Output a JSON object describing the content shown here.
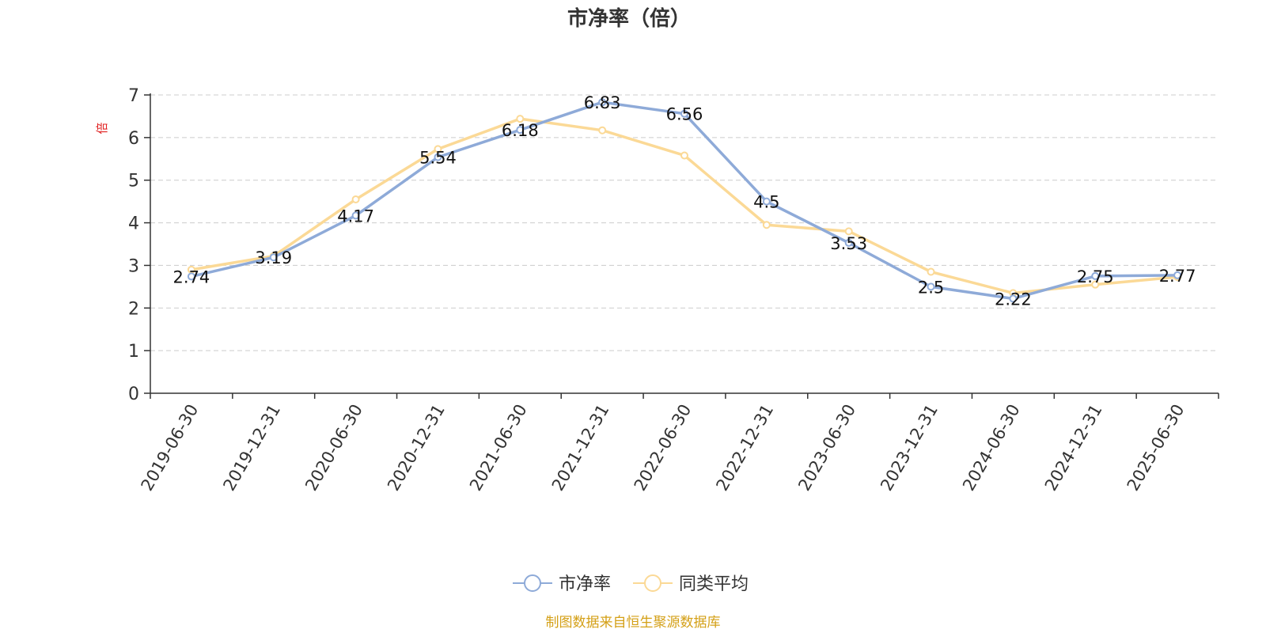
{
  "chart_data": {
    "type": "line",
    "title": "市净率（倍）",
    "ylabel": "倍",
    "xlabel": "",
    "categories": [
      "2019-06-30",
      "2019-12-31",
      "2020-06-30",
      "2020-12-31",
      "2021-06-30",
      "2021-12-31",
      "2022-06-30",
      "2022-12-31",
      "2023-06-30",
      "2023-12-31",
      "2024-06-30",
      "2024-12-31",
      "2025-06-30"
    ],
    "series": [
      {
        "name": "市净率",
        "color": "#8eaad8",
        "show_labels": true,
        "values": [
          2.74,
          3.19,
          4.17,
          5.54,
          6.18,
          6.83,
          6.56,
          4.5,
          3.53,
          2.5,
          2.22,
          2.75,
          2.77
        ]
      },
      {
        "name": "同类平均",
        "color": "#fbd996",
        "show_labels": false,
        "values": [
          2.9,
          3.22,
          4.55,
          5.73,
          6.44,
          6.17,
          5.58,
          3.95,
          3.8,
          2.85,
          2.35,
          2.55,
          2.73
        ]
      }
    ],
    "ylim": [
      0,
      7
    ],
    "yticks": [
      0,
      1,
      2,
      3,
      4,
      5,
      6,
      7
    ],
    "grid": true,
    "legend_position": "bottom-center"
  },
  "source_text": "制图数据来自恒生聚源数据库",
  "colors": {
    "axis": "#333333",
    "grid": "#cccccc",
    "ylabel": "#e02020",
    "source": "#d4a017"
  }
}
